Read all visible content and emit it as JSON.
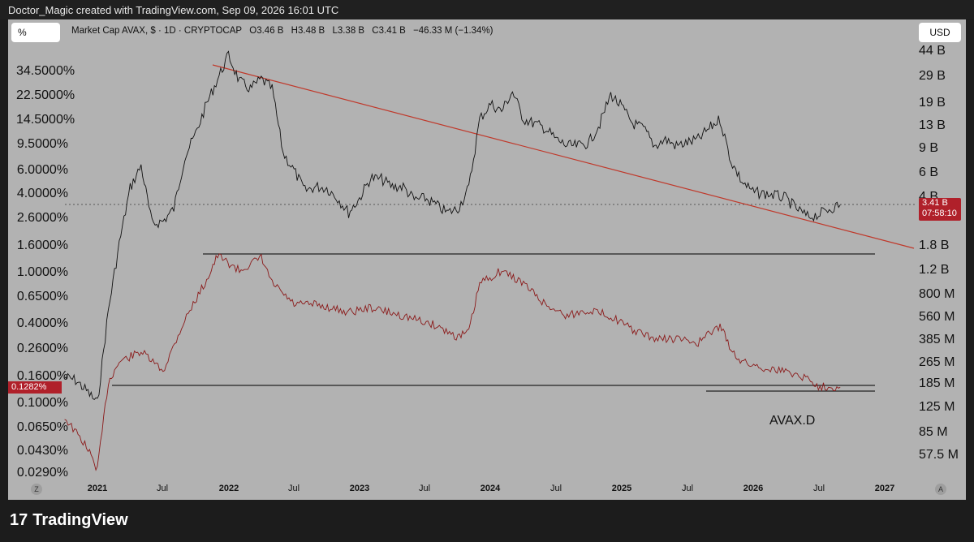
{
  "credit": "Doctor_Magic created with TradingView.com, Sep 09, 2026 16:01 UTC",
  "buttons": {
    "percent": "%",
    "currency": "USD"
  },
  "legend": {
    "title": "Market Cap AVAX, $ · 1D · CRYPTOCAP",
    "open": "O3.46 B",
    "high": "H3.48 B",
    "low": "L3.38 B",
    "close": "C3.41 B",
    "change": "−46.33 M (−1.34%)"
  },
  "price_tag": {
    "value": "3.41 B",
    "countdown": "07:58:10"
  },
  "percent_tag": "0.1282%",
  "series_label": "AVAX.D",
  "footer": {
    "brand": "TradingView",
    "brand_mark": "17"
  },
  "corners": {
    "left": "Z",
    "right": "A"
  },
  "colors": {
    "panel": "#b2b2b2",
    "trendline": "#c0392b",
    "price_series": "#111111",
    "dominance_series": "#8b1a1a",
    "tag": "#b0202a"
  },
  "chart_data": {
    "type": "line",
    "x_axis_labels": [
      "2021",
      "Jul",
      "2022",
      "Jul",
      "2023",
      "Jul",
      "2024",
      "Jul",
      "2025",
      "Jul",
      "2026",
      "Jul",
      "2027"
    ],
    "y_left_labels": [
      "34.5000%",
      "22.5000%",
      "14.5000%",
      "9.5000%",
      "6.0000%",
      "4.0000%",
      "2.6000%",
      "1.6000%",
      "1.0000%",
      "0.6500%",
      "0.4000%",
      "0.2600%",
      "0.1600%",
      "0.1000%",
      "0.0650%",
      "0.0430%",
      "0.0290%"
    ],
    "y_right_labels": [
      "44 B",
      "29 B",
      "19 B",
      "13 B",
      "9 B",
      "6 B",
      "4 B",
      "1.8 B",
      "1.2 B",
      "800 M",
      "560 M",
      "385 M",
      "265 M",
      "185 M",
      "125 M",
      "85 M",
      "57.5 M"
    ],
    "y_scale": "log",
    "series": [
      {
        "name": "Market Cap AVAX",
        "x": [
          "2020-10",
          "2020-11",
          "2020-12",
          "2021-01",
          "2021-02",
          "2021-03",
          "2021-04",
          "2021-05",
          "2021-06",
          "2021-07",
          "2021-08",
          "2021-09",
          "2021-10",
          "2021-11",
          "2021-12",
          "2022-01",
          "2022-02",
          "2022-03",
          "2022-04",
          "2022-05",
          "2022-06",
          "2022-07",
          "2022-08",
          "2022-09",
          "2022-10",
          "2022-11",
          "2022-12",
          "2023-01",
          "2023-02",
          "2023-03",
          "2023-04",
          "2023-05",
          "2023-06",
          "2023-07",
          "2023-08",
          "2023-09",
          "2023-10",
          "2023-11",
          "2023-12",
          "2024-01",
          "2024-02",
          "2024-03",
          "2024-04",
          "2024-05",
          "2024-06",
          "2024-07",
          "2024-08",
          "2024-09",
          "2024-10",
          "2024-11",
          "2024-12",
          "2025-01",
          "2025-02",
          "2025-03",
          "2025-04",
          "2025-05",
          "2025-06",
          "2025-07",
          "2025-08",
          "2025-09",
          "2025-10",
          "2025-11",
          "2025-12",
          "2026-01",
          "2026-02",
          "2026-03",
          "2026-04",
          "2026-05",
          "2026-06",
          "2026-07",
          "2026-08",
          "2026-09"
        ],
        "y_billion": [
          0.2,
          0.19,
          0.16,
          0.13,
          0.6,
          1.8,
          4.5,
          6.5,
          2.5,
          2.6,
          3.2,
          7.5,
          11,
          18,
          27,
          40,
          26,
          23,
          27,
          23,
          8,
          6,
          4.3,
          4.6,
          4.5,
          3.8,
          3.0,
          3.8,
          5.3,
          5.2,
          4.6,
          4.6,
          3.7,
          3.8,
          3.4,
          3.0,
          3.2,
          4.5,
          14,
          18,
          16,
          22,
          14,
          13,
          12,
          10,
          9,
          9,
          9.5,
          13,
          21,
          17,
          13,
          12,
          9,
          10,
          9,
          9.5,
          10,
          12,
          14,
          7,
          5,
          4.2,
          4.1,
          4.0,
          3.8,
          3.2,
          2.8,
          2.9,
          3.2,
          3.41
        ]
      },
      {
        "name": "AVAX.D",
        "x": [
          "2020-10",
          "2020-12",
          "2021-01",
          "2021-02",
          "2021-03",
          "2021-05",
          "2021-07",
          "2021-09",
          "2021-11",
          "2021-12",
          "2022-02",
          "2022-04",
          "2022-05",
          "2022-07",
          "2022-09",
          "2022-12",
          "2023-02",
          "2023-05",
          "2023-08",
          "2023-10",
          "2023-11",
          "2023-12",
          "2024-02",
          "2024-04",
          "2024-06",
          "2024-08",
          "2024-10",
          "2024-12",
          "2025-02",
          "2025-04",
          "2025-06",
          "2025-08",
          "2025-10",
          "2025-11",
          "2025-12",
          "2026-02",
          "2026-04",
          "2026-06",
          "2026-07",
          "2026-09"
        ],
        "y_percent": [
          0.075,
          0.045,
          0.03,
          0.14,
          0.2,
          0.24,
          0.17,
          0.42,
          0.85,
          1.3,
          1.0,
          1.25,
          0.8,
          0.55,
          0.55,
          0.48,
          0.52,
          0.45,
          0.38,
          0.31,
          0.34,
          0.8,
          1.0,
          0.8,
          0.55,
          0.45,
          0.5,
          0.45,
          0.35,
          0.3,
          0.3,
          0.28,
          0.38,
          0.25,
          0.2,
          0.18,
          0.17,
          0.15,
          0.13,
          0.1282
        ]
      }
    ],
    "annotations": [
      "descending trendline from 2021 Nov high",
      "horizontal level near 1.4 B",
      "horizontal level near 0.16%"
    ]
  }
}
